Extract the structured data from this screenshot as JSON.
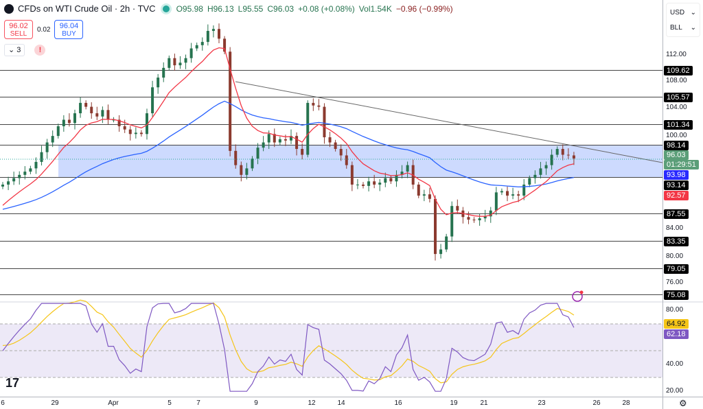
{
  "header": {
    "title": "CFDs on WTI Crude Oil · 2h · TVC",
    "open": "O95.98",
    "high": "H96.13",
    "low": "L95.55",
    "close": "C96.03",
    "change": "+0.08 (+0.08%)",
    "volume": "Vol1.54K",
    "vol_change": "−0.96 (−0.99%)"
  },
  "trade": {
    "sell_price": "96.02",
    "sell_label": "SELL",
    "spread": "0.02",
    "buy_price": "96.04",
    "buy_label": "BUY"
  },
  "indicators": {
    "count": "3",
    "warning": "!"
  },
  "axis_menu": {
    "currency": "USD",
    "unit": "BLL"
  },
  "colors": {
    "up": "#26734f",
    "down": "#8b3a2f",
    "ma_fast": "#f23645",
    "ma_slow": "#2962ff",
    "zone": "#bccdfd",
    "rsi": "#7e57c2",
    "rsi_ma": "#f5c518"
  },
  "price_ticks": [
    "112.00",
    "108.00",
    "104.00",
    "100.00",
    "84.00",
    "80.00",
    "76.00"
  ],
  "price_levels": [
    "109.62",
    "105.57",
    "101.34",
    "98.14",
    "93.14",
    "87.55",
    "83.35",
    "79.05",
    "75.08"
  ],
  "last_price": "96.03",
  "countdown": "01:29:51",
  "ma_slow_value": "93.98",
  "ma_fast_value": "92.57",
  "rsi_ticks": [
    "80.00",
    "40.00",
    "20.00"
  ],
  "rsi_ma_value": "64.92",
  "rsi_value": "62.18",
  "dates": [
    "6",
    "29",
    "Apr",
    "5",
    "7",
    "9",
    "12",
    "14",
    "16",
    "19",
    "21",
    "23",
    "26",
    "28"
  ],
  "closes": [
    92,
    92.5,
    93,
    93.5,
    94,
    94.5,
    95.5,
    97,
    98.5,
    99.5,
    101,
    102,
    101.5,
    103,
    104.6,
    104,
    103,
    102.5,
    103.5,
    102,
    102,
    101,
    100.5,
    99.8,
    100,
    99.8,
    103,
    107,
    108.5,
    110,
    111.5,
    110.4,
    110.8,
    111.5,
    113,
    113.5,
    114,
    115.7,
    116,
    114.5,
    112.5,
    97.2,
    95,
    93.5,
    94.5,
    96,
    97.7,
    98.5,
    99.8,
    98.5,
    99,
    98.8,
    99.5,
    97.5,
    96.6,
    104.6,
    104.2,
    104,
    99.3,
    98.5,
    97.5,
    96.5,
    95,
    92,
    92,
    91.8,
    92.5,
    92,
    92.3,
    93,
    92.5,
    93.5,
    94,
    95,
    92,
    90.3,
    90.5,
    89.8,
    81.3,
    82,
    84,
    88.7,
    88,
    87,
    86.6,
    86.5,
    86.8,
    87.1,
    88,
    90.8,
    91,
    90.3,
    90.5,
    90.3,
    92,
    93,
    93.5,
    94.5,
    95,
    96.6,
    97.5,
    96.6,
    96.5,
    96.03
  ]
}
